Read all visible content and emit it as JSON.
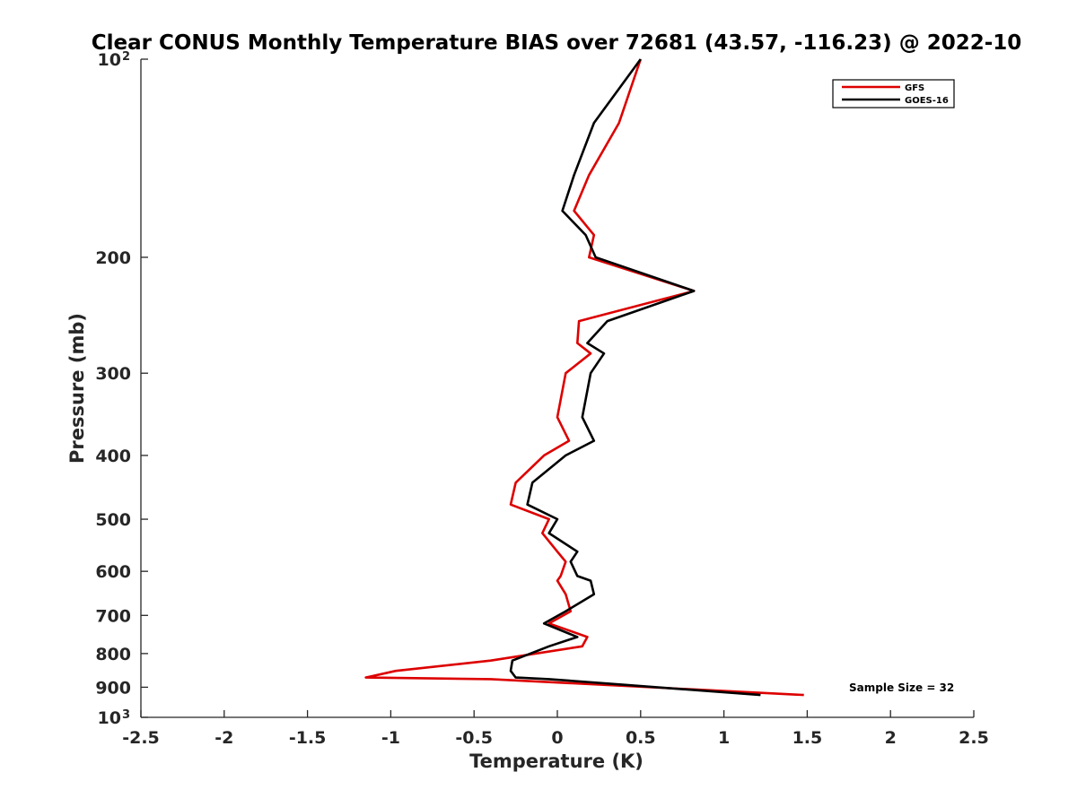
{
  "chart_data": {
    "type": "line",
    "title": "Clear CONUS Monthly Temperature BIAS over 72681 (43.57, -116.23) @ 2022-10",
    "xlabel": "Temperature (K)",
    "ylabel": "Pressure (mb)",
    "xlim": [
      -2.5,
      2.5
    ],
    "ylim": [
      100,
      1000
    ],
    "y_scale": "log",
    "y_reversed": true,
    "grid": false,
    "x_ticks": [
      {
        "value": -2.5,
        "label": "-2.5"
      },
      {
        "value": -2,
        "label": "-2"
      },
      {
        "value": -1.5,
        "label": "-1.5"
      },
      {
        "value": -1,
        "label": "-1"
      },
      {
        "value": -0.5,
        "label": "-0.5"
      },
      {
        "value": 0,
        "label": "0"
      },
      {
        "value": 0.5,
        "label": "0.5"
      },
      {
        "value": 1,
        "label": "1"
      },
      {
        "value": 1.5,
        "label": "1.5"
      },
      {
        "value": 2,
        "label": "2"
      },
      {
        "value": 2.5,
        "label": "2.5"
      }
    ],
    "y_ticks": [
      {
        "value": 100,
        "label": "10",
        "sup": "2"
      },
      {
        "value": 200,
        "label": "200",
        "sup": ""
      },
      {
        "value": 300,
        "label": "300",
        "sup": ""
      },
      {
        "value": 400,
        "label": "400",
        "sup": ""
      },
      {
        "value": 500,
        "label": "500",
        "sup": ""
      },
      {
        "value": 600,
        "label": "600",
        "sup": ""
      },
      {
        "value": 700,
        "label": "700",
        "sup": ""
      },
      {
        "value": 800,
        "label": "800",
        "sup": ""
      },
      {
        "value": 900,
        "label": "900",
        "sup": ""
      },
      {
        "value": 1000,
        "label": "10",
        "sup": "3"
      }
    ],
    "legend_position": "top-right",
    "series": [
      {
        "name": "GFS",
        "color": "#dd0000",
        "pressure": [
          100,
          125,
          150,
          170,
          185,
          200,
          225,
          250,
          270,
          280,
          300,
          350,
          380,
          400,
          440,
          475,
          500,
          525,
          560,
          580,
          610,
          620,
          650,
          690,
          720,
          755,
          780,
          820,
          850,
          870,
          875,
          925
        ],
        "values": [
          0.5,
          0.37,
          0.19,
          0.1,
          0.22,
          0.19,
          0.82,
          0.13,
          0.12,
          0.2,
          0.05,
          0.0,
          0.07,
          -0.08,
          -0.25,
          -0.28,
          -0.05,
          -0.09,
          0.0,
          0.05,
          0.02,
          0.0,
          0.05,
          0.08,
          -0.05,
          0.18,
          0.15,
          -0.4,
          -0.97,
          -1.15,
          -0.4,
          1.48
        ]
      },
      {
        "name": "GOES-16",
        "color": "#000000",
        "pressure": [
          100,
          125,
          150,
          170,
          185,
          200,
          225,
          250,
          270,
          280,
          300,
          350,
          380,
          400,
          440,
          475,
          500,
          525,
          560,
          580,
          610,
          620,
          650,
          690,
          720,
          755,
          780,
          820,
          850,
          870,
          875,
          925
        ],
        "values": [
          0.5,
          0.22,
          0.1,
          0.03,
          0.17,
          0.23,
          0.82,
          0.3,
          0.18,
          0.28,
          0.2,
          0.15,
          0.22,
          0.05,
          -0.15,
          -0.18,
          0.0,
          -0.05,
          0.12,
          0.08,
          0.12,
          0.2,
          0.22,
          0.05,
          -0.08,
          0.12,
          -0.05,
          -0.27,
          -0.28,
          -0.25,
          -0.05,
          1.22
        ]
      }
    ],
    "annotations": [
      "Sample Size = 32"
    ]
  }
}
